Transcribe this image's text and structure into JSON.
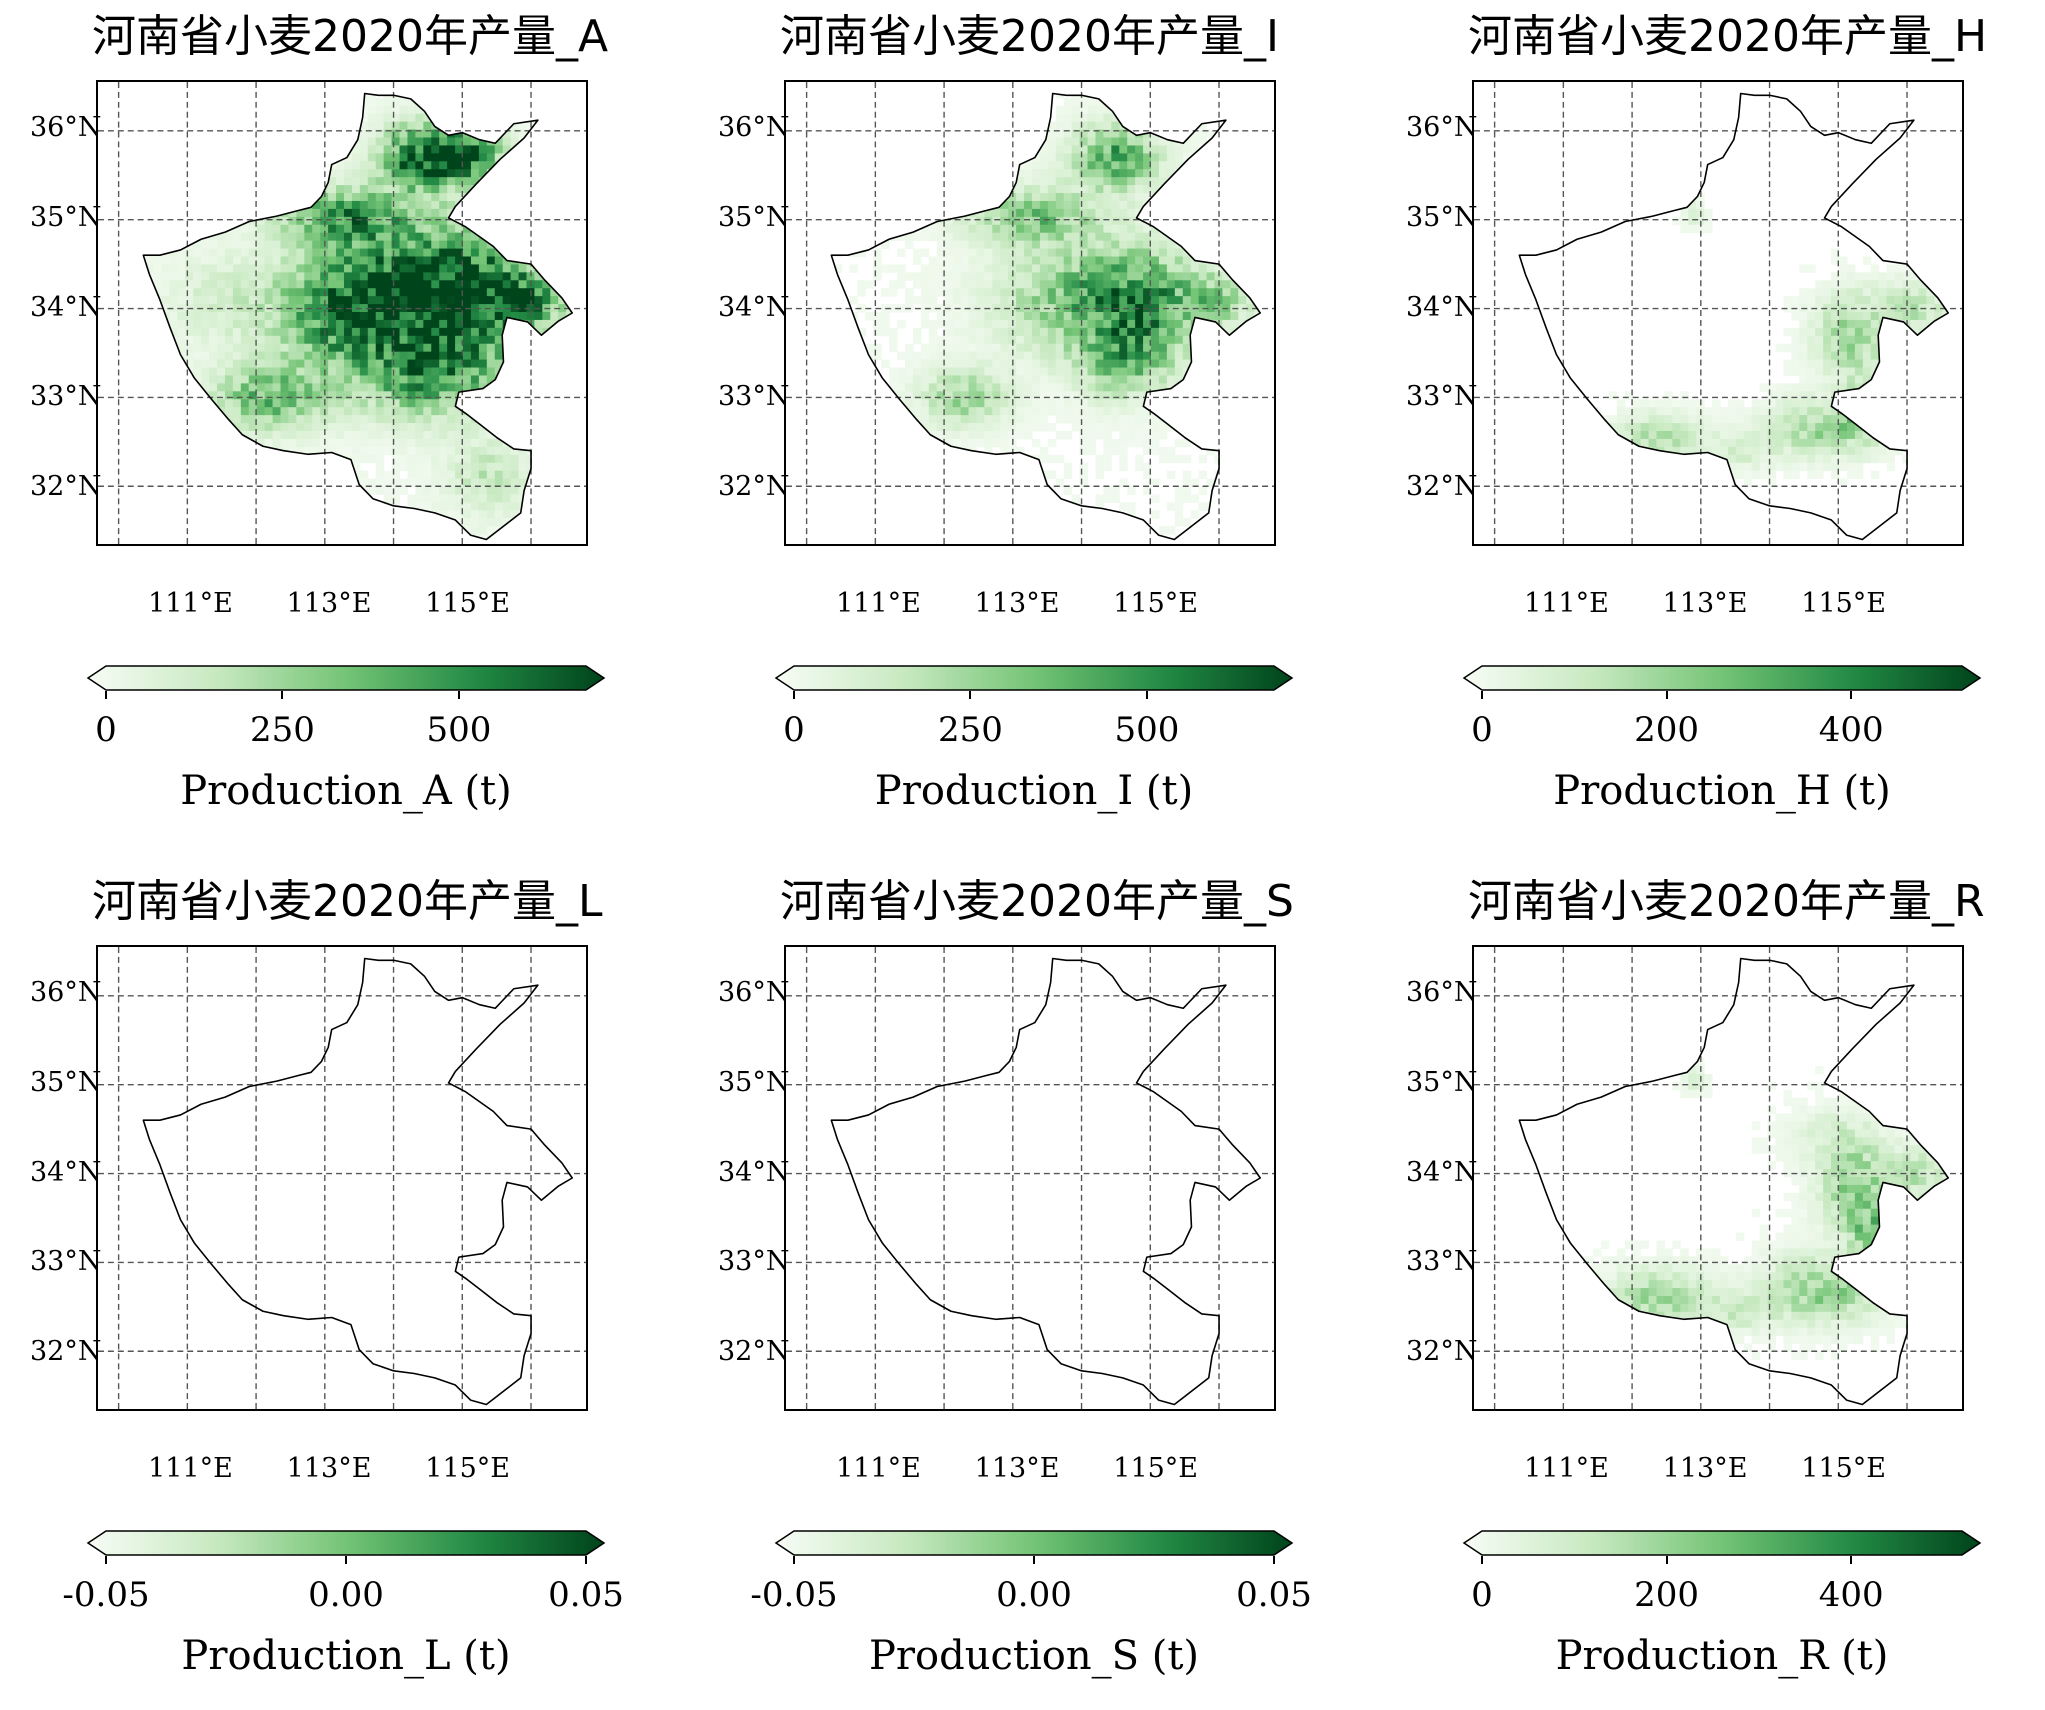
{
  "panels": [
    {
      "id": "A",
      "title": "河南省小麦2020年产量_A",
      "colorbar": {
        "label": "Production_A (t)",
        "ticks": [
          "0",
          "250",
          "500"
        ],
        "min": 0,
        "max": 680
      },
      "has_data": true,
      "intensity": 1.0,
      "pattern": "A"
    },
    {
      "id": "I",
      "title": "河南省小麦2020年产量_I",
      "colorbar": {
        "label": "Production_I (t)",
        "ticks": [
          "0",
          "250",
          "500"
        ],
        "min": 0,
        "max": 680
      },
      "has_data": true,
      "intensity": 0.8,
      "pattern": "I"
    },
    {
      "id": "H",
      "title": "河南省小麦2020年产量_H",
      "colorbar": {
        "label": "Production_H (t)",
        "ticks": [
          "0",
          "200",
          "400"
        ],
        "min": 0,
        "max": 520
      },
      "has_data": true,
      "intensity": 0.55,
      "pattern": "H"
    },
    {
      "id": "L",
      "title": "河南省小麦2020年产量_L",
      "colorbar": {
        "label": "Production_L (t)",
        "ticks": [
          "-0.05",
          "0.00",
          "0.05"
        ],
        "min": -0.05,
        "max": 0.05
      },
      "has_data": false,
      "intensity": 0,
      "pattern": "none"
    },
    {
      "id": "S",
      "title": "河南省小麦2020年产量_S",
      "colorbar": {
        "label": "Production_S (t)",
        "ticks": [
          "-0.05",
          "0.00",
          "0.05"
        ],
        "min": -0.05,
        "max": 0.05
      },
      "has_data": false,
      "intensity": 0,
      "pattern": "none"
    },
    {
      "id": "R",
      "title": "河南省小麦2020年产量_R",
      "colorbar": {
        "label": "Production_R (t)",
        "ticks": [
          "0",
          "200",
          "400"
        ],
        "min": 0,
        "max": 520
      },
      "has_data": true,
      "intensity": 0.6,
      "pattern": "R"
    }
  ],
  "lat_labels": [
    "36°N",
    "35°N",
    "34°N",
    "33°N",
    "32°N"
  ],
  "lon_labels": [
    "111°E",
    "113°E",
    "115°E"
  ],
  "colormap": [
    "#f7fcf5",
    "#c7e9c0",
    "#74c476",
    "#238b45",
    "#00441b"
  ]
}
